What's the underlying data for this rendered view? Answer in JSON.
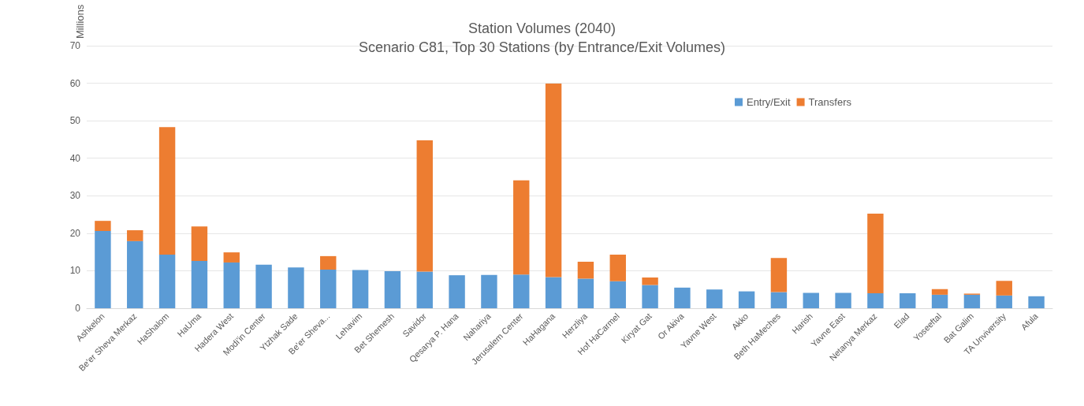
{
  "chart_data": {
    "type": "bar",
    "title": "Station Volumes (2040)",
    "subtitle": "Scenario C81, Top 30 Stations (by Entrance/Exit Volumes)",
    "ylabel": "Millions",
    "categories": [
      "Ashkelon",
      "Be'er Sheva Merkaz",
      "HaShalom",
      "HaUma",
      "Hadera West",
      "Modi'in Center",
      "Ytzhak Sade",
      "Be'er Sheva...",
      "Lehavim",
      "Bet Shemesh",
      "Savidor",
      "Qesarya P. Hana",
      "Nahariya",
      "Jerusalem Center",
      "HaHagana",
      "Herzliya",
      "Hof HaCarmel",
      "Kiryat Gat",
      "Or Akiva",
      "Yavne West",
      "Akko",
      "Beth HaMeches",
      "Harish",
      "Yavne East",
      "Netanya Merkaz",
      "Elad",
      "Yoseeftal",
      "Bat Galim",
      "TA Unviversity",
      "Afula"
    ],
    "series": [
      {
        "name": "Entry/Exit",
        "color": "#5b9bd5",
        "values": [
          20.6,
          17.9,
          14.3,
          12.6,
          12.2,
          11.6,
          10.9,
          10.3,
          10.2,
          9.9,
          9.8,
          8.8,
          8.9,
          9.0,
          8.3,
          7.9,
          7.2,
          6.2,
          5.5,
          5.0,
          4.5,
          4.3,
          4.1,
          4.1,
          4.0,
          4.0,
          3.6,
          3.6,
          3.4,
          3.2
        ]
      },
      {
        "name": "Transfers",
        "color": "#ed7d31",
        "values": [
          2.7,
          2.9,
          34.0,
          9.2,
          2.7,
          0,
          0,
          3.6,
          0,
          0,
          35.0,
          0,
          0,
          25.1,
          51.6,
          4.5,
          7.1,
          2.0,
          0,
          0,
          0,
          9.1,
          0,
          0,
          21.2,
          0,
          1.5,
          0.3,
          3.9,
          0
        ]
      }
    ],
    "stacked": true,
    "ylim": [
      0,
      70
    ],
    "yticks": [
      0,
      10,
      20,
      30,
      40,
      50,
      60,
      70
    ],
    "grid": "y",
    "legend": "top right"
  }
}
